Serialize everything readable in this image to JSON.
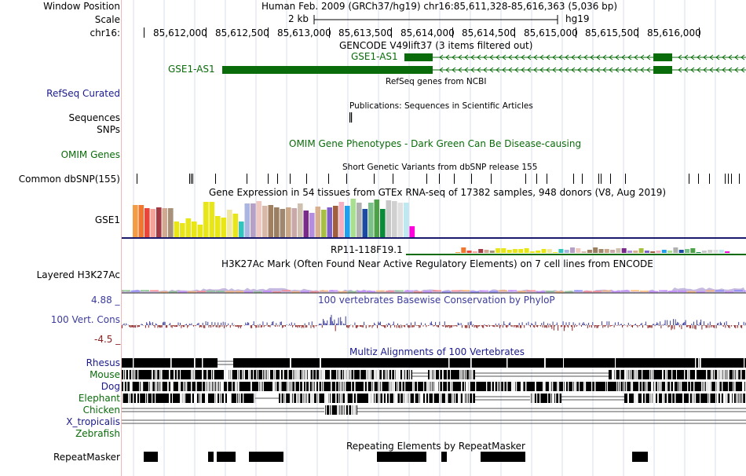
{
  "header": {
    "window_position_label": "Window Position",
    "window_position_value": "Human Feb. 2009 (GRCh37/hg19)   chr16:85,611,328-85,616,363 (5,036 bp)",
    "scale_label": "Scale",
    "scale_value": "2 kb",
    "assembly": "hg19",
    "chrom_label": "chr16:",
    "ruler_ticks": [
      "85,612,000",
      "85,612,500",
      "85,613,000",
      "85,613,500",
      "85,614,000",
      "85,614,500",
      "85,615,000",
      "85,615,500",
      "85,616,000"
    ]
  },
  "tracks": {
    "gencode": {
      "title": "GENCODE V49lift37 (3 items filtered out)",
      "gene1": "GSE1-AS1",
      "gene2": "GSE1-AS1"
    },
    "refseq": {
      "title": "RefSeq genes from NCBI",
      "label": "RefSeq Curated"
    },
    "publications": {
      "title": "Publications: Sequences in Scientific Articles",
      "label": "Sequences"
    },
    "snps": {
      "label": "SNPs"
    },
    "omim": {
      "title": "OMIM Gene Phenotypes - Dark Green Can Be Disease-causing",
      "label": "OMIM Genes"
    },
    "dbsnp": {
      "title": "Short Genetic Variants from dbSNP release 155",
      "label": "Common dbSNP(155)"
    },
    "gtex": {
      "title": "Gene Expression in 54 tissues from GTEx RNA-seq of 17382 samples, 948 donors (V8, Aug 2019)",
      "label": "GSE1",
      "second_gene": "RP11-118F19.1"
    },
    "h3k27ac": {
      "title": "H3K27Ac Mark (Often Found Near Active Regulatory Elements) on 7 cell lines from ENCODE",
      "label": "Layered H3K27Ac"
    },
    "phylop": {
      "title": "100 vertebrates Basewise Conservation by PhyloP",
      "label": "100 Vert. Cons",
      "max_label": "4.88 _",
      "min_label": "-4.5 _"
    },
    "multiz": {
      "title": "Multiz Alignments of 100 Vertebrates",
      "species": [
        "Rhesus",
        "Mouse",
        "Dog",
        "Elephant",
        "Chicken",
        "X_tropicalis",
        "Zebrafish"
      ]
    },
    "repeatmasker": {
      "title": "Repeating Elements by RepeatMasker",
      "label": "RepeatMasker"
    }
  },
  "colors": {
    "gene_green": "#0a6b0a",
    "label_blue": "#1a1a8c",
    "phylop_blue": "#3c3c9c",
    "phylop_red": "#8c2020",
    "grid": "#d8e2ee",
    "left_rule": "#f2b8b8"
  }
}
